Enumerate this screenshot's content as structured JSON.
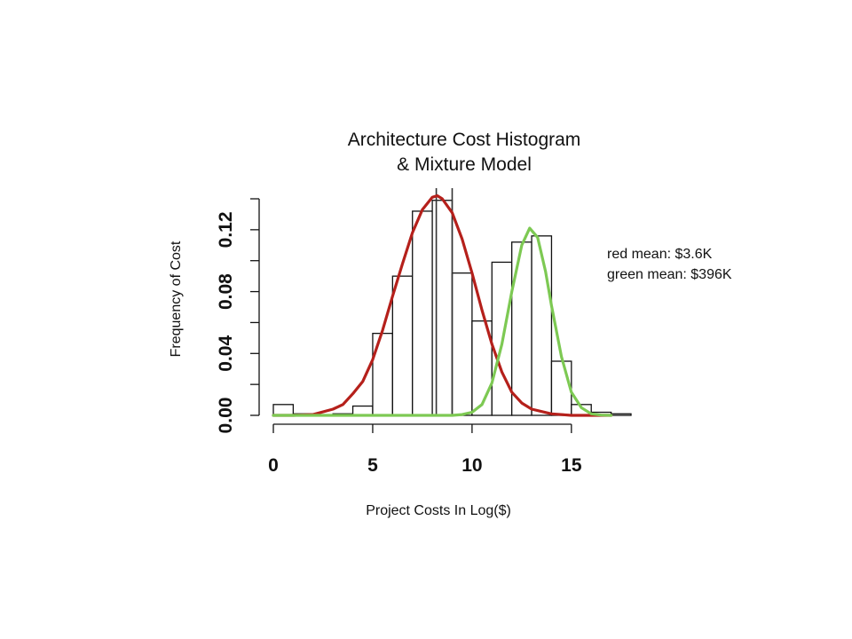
{
  "chart_data": {
    "type": "bar",
    "title_lines": [
      "Architecture Cost Histogram",
      "& Mixture Model"
    ],
    "xlabel": "Project Costs In Log($)",
    "ylabel": "Frequency of Cost",
    "xlim": [
      0,
      18
    ],
    "ylim": [
      0,
      0.14
    ],
    "x_ticks": [
      0,
      5,
      10,
      15
    ],
    "x_tick_labels": [
      "0",
      "5",
      "10",
      "15"
    ],
    "y_ticks": [
      0,
      0.04,
      0.08,
      0.12
    ],
    "y_tick_labels": [
      "0.00",
      "0.04",
      "0.08",
      "0.12"
    ],
    "bins": [
      {
        "from": 0,
        "to": 1,
        "value": 0.007
      },
      {
        "from": 1,
        "to": 2,
        "value": 0.001
      },
      {
        "from": 2,
        "to": 3,
        "value": 0.0005
      },
      {
        "from": 3,
        "to": 4,
        "value": 0.001
      },
      {
        "from": 4,
        "to": 5,
        "value": 0.006
      },
      {
        "from": 5,
        "to": 6,
        "value": 0.053
      },
      {
        "from": 6,
        "to": 7,
        "value": 0.09
      },
      {
        "from": 7,
        "to": 8,
        "value": 0.132
      },
      {
        "from": 8,
        "to": 9,
        "value": 0.139
      },
      {
        "from": 9,
        "to": 10,
        "value": 0.092
      },
      {
        "from": 10,
        "to": 11,
        "value": 0.061
      },
      {
        "from": 11,
        "to": 12,
        "value": 0.099
      },
      {
        "from": 12,
        "to": 13,
        "value": 0.112
      },
      {
        "from": 13,
        "to": 14,
        "value": 0.116
      },
      {
        "from": 14,
        "to": 15,
        "value": 0.035
      },
      {
        "from": 15,
        "to": 16,
        "value": 0.007
      },
      {
        "from": 16,
        "to": 17,
        "value": 0.002
      },
      {
        "from": 17,
        "to": 18,
        "value": 0.001
      }
    ],
    "vertical_lines": [
      {
        "x": 8.2,
        "color": "#333333"
      },
      {
        "x": 9.0,
        "color": "#333333"
      }
    ],
    "series": [
      {
        "color": "#b5201b",
        "x": [
          0,
          1,
          2,
          3,
          3.5,
          4,
          4.5,
          5,
          5.5,
          6,
          6.5,
          7,
          7.5,
          8,
          8.25,
          8.5,
          9,
          9.5,
          10,
          10.5,
          11,
          11.5,
          12,
          12.5,
          13,
          14,
          15,
          16,
          17
        ],
        "values": [
          0,
          0,
          0.0005,
          0.004,
          0.007,
          0.014,
          0.022,
          0.036,
          0.055,
          0.077,
          0.098,
          0.118,
          0.133,
          0.141,
          0.142,
          0.14,
          0.131,
          0.114,
          0.092,
          0.068,
          0.046,
          0.028,
          0.015,
          0.008,
          0.004,
          0.001,
          0,
          0,
          0
        ]
      },
      {
        "color": "#7dc953",
        "x": [
          0,
          9,
          9.5,
          10,
          10.5,
          11,
          11.5,
          12,
          12.5,
          12.9,
          13.3,
          13.7,
          14,
          14.5,
          15,
          15.5,
          16,
          16.5,
          17
        ],
        "values": [
          0,
          0,
          0.0005,
          0.002,
          0.007,
          0.021,
          0.046,
          0.08,
          0.11,
          0.121,
          0.115,
          0.093,
          0.071,
          0.038,
          0.015,
          0.005,
          0.001,
          0.0002,
          0
        ]
      }
    ],
    "annotations": [
      "red mean: $3.6K",
      "green mean: $396K"
    ]
  }
}
